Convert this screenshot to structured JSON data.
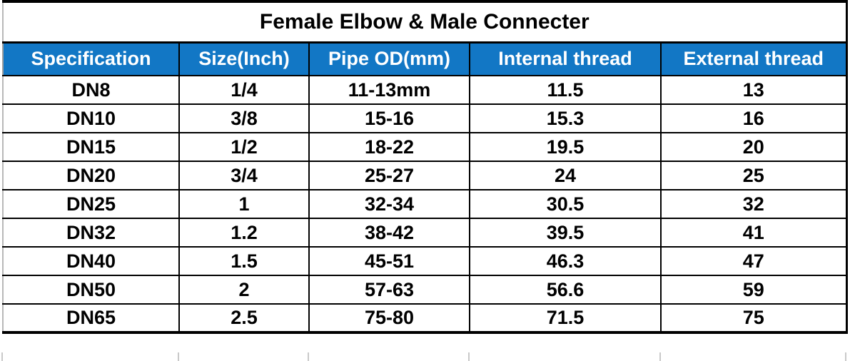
{
  "title": "Female Elbow & Male Connecter",
  "table": {
    "columns": [
      "Specification",
      "Size(Inch)",
      "Pipe OD(mm)",
      "Internal thread",
      "External thread"
    ],
    "rows": [
      [
        "DN8",
        "1/4",
        "11-13mm",
        "11.5",
        "13"
      ],
      [
        "DN10",
        "3/8",
        "15-16",
        "15.3",
        "16"
      ],
      [
        "DN15",
        "1/2",
        "18-22",
        "19.5",
        "20"
      ],
      [
        "DN20",
        "3/4",
        "25-27",
        "24",
        "25"
      ],
      [
        "DN25",
        "1",
        "32-34",
        "30.5",
        "32"
      ],
      [
        "DN32",
        "1.2",
        "38-42",
        "39.5",
        "41"
      ],
      [
        "DN40",
        "1.5",
        "45-51",
        "46.3",
        "47"
      ],
      [
        "DN50",
        "2",
        "57-63",
        "56.6",
        "59"
      ],
      [
        "DN65",
        "2.5",
        "75-80",
        "71.5",
        "75"
      ]
    ]
  },
  "colors": {
    "header_bg": "#1277C5",
    "header_text": "#FFFFFF",
    "body_text": "#000000",
    "grid_line": "#000000"
  }
}
